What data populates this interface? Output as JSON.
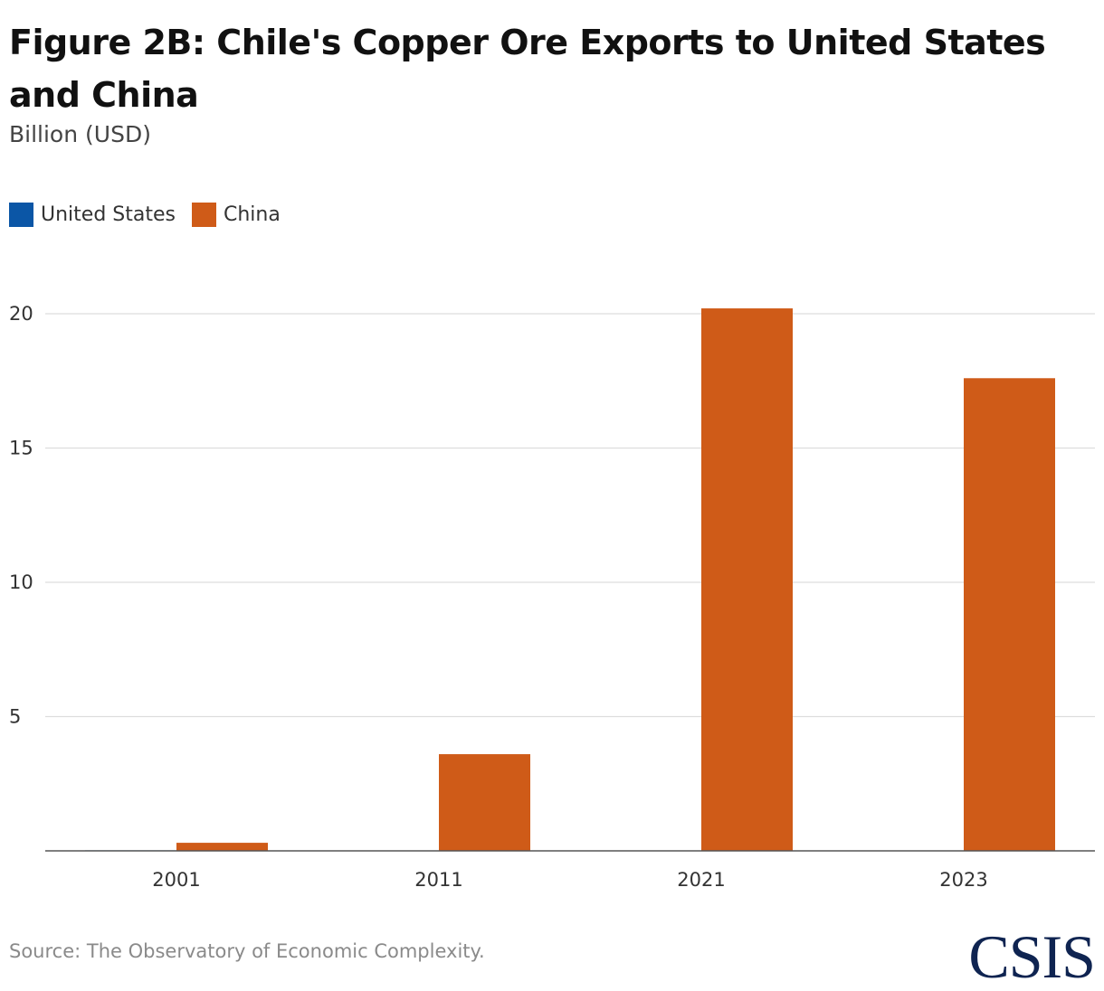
{
  "header": {
    "title": "Figure 2B: Chile's Copper Ore Exports to United States and China",
    "subtitle": "Billion (USD)"
  },
  "colors": {
    "us": "#0b56a6",
    "china": "#cf5b18",
    "grid": "#dddddd",
    "axis": "#555555"
  },
  "legend": [
    {
      "label": "United States",
      "color": "#0b56a6"
    },
    {
      "label": "China",
      "color": "#cf5b18"
    }
  ],
  "footer": {
    "source": "Source: The Observatory of Economic Complexity.",
    "logo_text": "CSIS"
  },
  "chart_data": {
    "type": "bar",
    "title": "Figure 2B: Chile's Copper Ore Exports to United States and China",
    "subtitle": "Billion (USD)",
    "categories": [
      "2001",
      "2011",
      "2021",
      "2023"
    ],
    "series": [
      {
        "name": "United States",
        "values": [
          0.02,
          0,
          0,
          0
        ]
      },
      {
        "name": "China",
        "values": [
          0.3,
          3.6,
          20.2,
          17.6
        ]
      }
    ],
    "xlabel": "",
    "ylabel": "",
    "ylim": [
      0,
      20
    ],
    "yticks": [
      5,
      10,
      15,
      20
    ],
    "grid": true,
    "legend_position": "top-left"
  }
}
